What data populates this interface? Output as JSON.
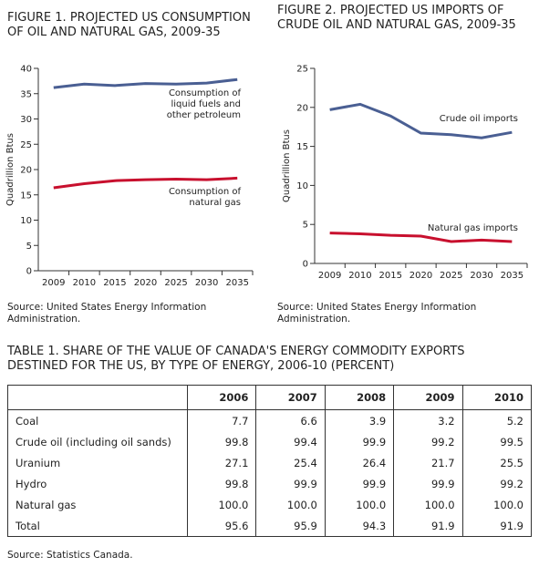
{
  "chart_data": [
    {
      "type": "line",
      "title": "FIGURE 1. PROJECTED US CONSUMPTION OF OIL AND NATURAL GAS, 2009-35",
      "y_label": "Quadrillion Btus",
      "categories": [
        "2009",
        "2010",
        "2015",
        "2020",
        "2025",
        "2030",
        "2035"
      ],
      "series": [
        {
          "name": "Consumption of liquid fuels and other petroleum",
          "color": "#4a5f93",
          "values": [
            36.2,
            36.9,
            36.6,
            37.0,
            36.9,
            37.1,
            37.8
          ]
        },
        {
          "name": "Consumption of natural gas",
          "color": "#c8102e",
          "values": [
            16.4,
            17.2,
            17.8,
            18.0,
            18.1,
            18.0,
            18.3
          ]
        }
      ],
      "ylim": [
        0,
        40
      ],
      "yticks": [
        0,
        5,
        10,
        15,
        20,
        25,
        30,
        35,
        40
      ],
      "source": "Source: United States Energy Information Administration."
    },
    {
      "type": "line",
      "title": "FIGURE 2. PROJECTED US IMPORTS OF CRUDE OIL AND NATURAL GAS, 2009-35",
      "y_label": "Quadrillion Btus",
      "categories": [
        "2009",
        "2010",
        "2015",
        "2020",
        "2025",
        "2030",
        "2035"
      ],
      "series": [
        {
          "name": "Crude oil imports",
          "color": "#4a5f93",
          "values": [
            19.7,
            20.4,
            18.9,
            16.7,
            16.5,
            16.1,
            16.8
          ]
        },
        {
          "name": "Natural gas imports",
          "color": "#c8102e",
          "values": [
            3.9,
            3.8,
            3.6,
            3.5,
            2.8,
            3.0,
            2.8
          ]
        }
      ],
      "ylim": [
        0,
        25
      ],
      "yticks": [
        0,
        5,
        10,
        15,
        20,
        25
      ],
      "source": "Source: United States Energy Information Administration."
    }
  ],
  "table": {
    "title": "TABLE 1. SHARE OF THE VALUE OF CANADA'S ENERGY COMMODITY EXPORTS DESTINED FOR THE US, BY TYPE OF ENERGY, 2006-10 (PERCENT)",
    "columns": [
      "2006",
      "2007",
      "2008",
      "2009",
      "2010"
    ],
    "rows": [
      {
        "label": "Coal",
        "values": [
          "7.7",
          "6.6",
          "3.9",
          "3.2",
          "5.2"
        ]
      },
      {
        "label": "Crude oil (including oil sands)",
        "values": [
          "99.8",
          "99.4",
          "99.9",
          "99.2",
          "99.5"
        ]
      },
      {
        "label": "Uranium",
        "values": [
          "27.1",
          "25.4",
          "26.4",
          "21.7",
          "25.5"
        ]
      },
      {
        "label": "Hydro",
        "values": [
          "99.8",
          "99.9",
          "99.9",
          "99.9",
          "99.2"
        ]
      },
      {
        "label": "Natural gas",
        "values": [
          "100.0",
          "100.0",
          "100.0",
          "100.0",
          "100.0"
        ]
      },
      {
        "label": "Total",
        "values": [
          "95.6",
          "95.9",
          "94.3",
          "91.9",
          "91.9"
        ]
      }
    ],
    "source": "Source: Statistics Canada."
  }
}
